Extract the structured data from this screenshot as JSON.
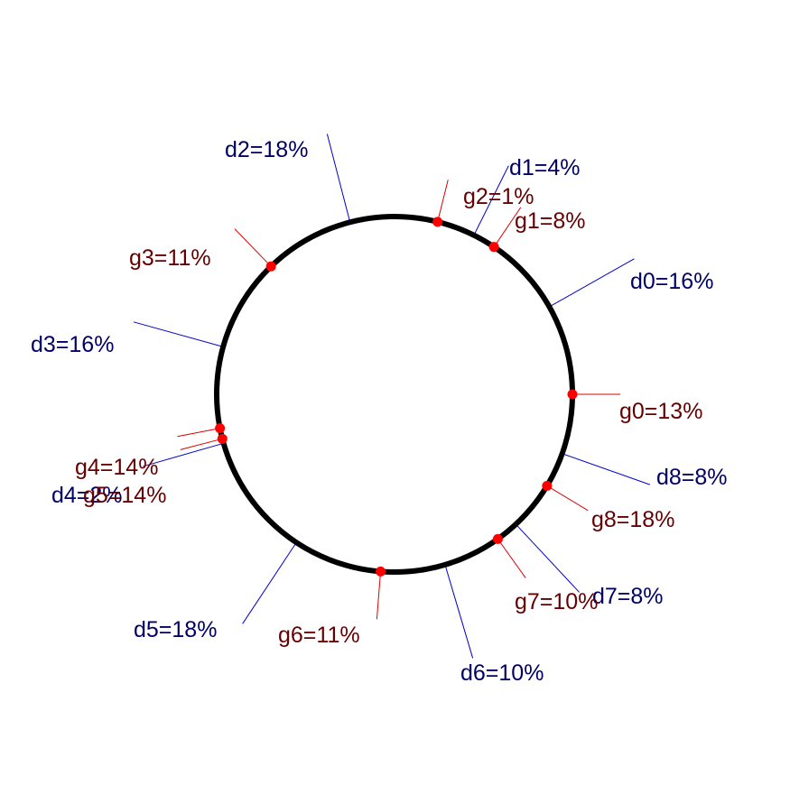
{
  "colors": {
    "ring": "#000000",
    "d_line": "#0000cc",
    "d_text": "#000066",
    "g_line": "#dd0000",
    "g_text": "#660000",
    "g_dot": "#ff0000"
  },
  "d_labels": [
    {
      "text": "d0=16%"
    },
    {
      "text": "d1=4%"
    },
    {
      "text": "d2=18%"
    },
    {
      "text": "d3=16%"
    },
    {
      "text": "d4=2%"
    },
    {
      "text": "d5=18%"
    },
    {
      "text": "d6=10%"
    },
    {
      "text": "d7=8%"
    },
    {
      "text": "d8=8%"
    }
  ],
  "g_labels": [
    {
      "text": "g0=13%"
    },
    {
      "text": "g1=8%"
    },
    {
      "text": "g2=1%"
    },
    {
      "text": "g3=11%"
    },
    {
      "text": "g4=14%"
    },
    {
      "text": "g5=14%"
    },
    {
      "text": "g6=11%"
    },
    {
      "text": "g7=10%"
    },
    {
      "text": "g8=18%"
    }
  ]
}
